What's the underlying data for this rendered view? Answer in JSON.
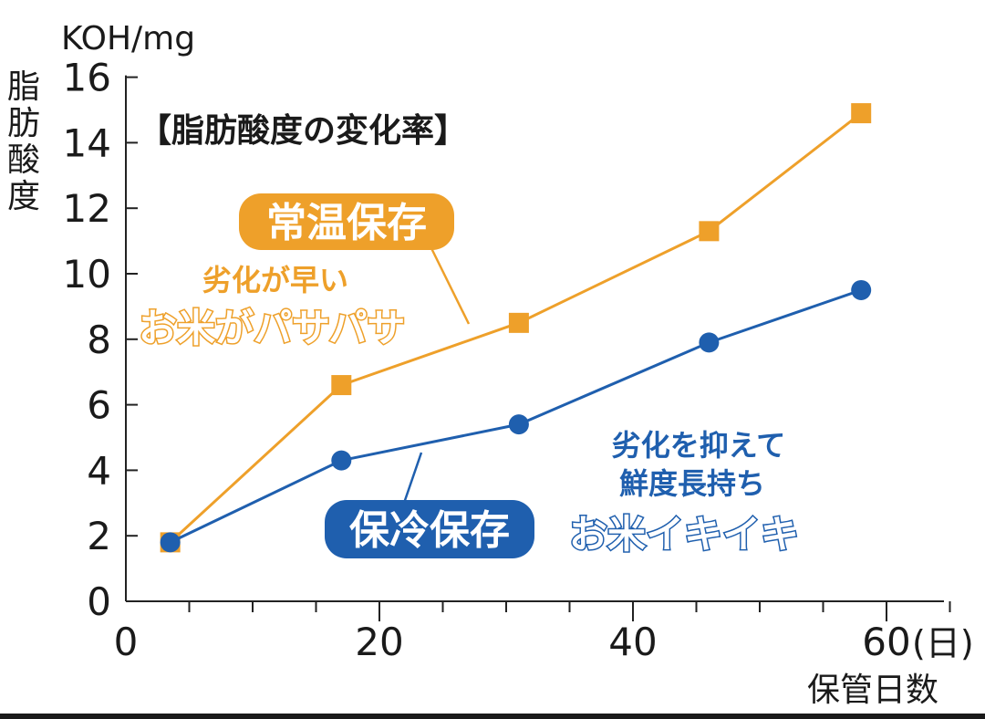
{
  "chart_data": {
    "type": "line",
    "title": "【脂肪酸度の変化率】",
    "unit_label": "KOH/mg",
    "ylabel": "脂肪酸度",
    "xlabel": "保管日数",
    "x_unit": "(日)",
    "xlim": [
      0,
      65
    ],
    "ylim": [
      0,
      16
    ],
    "x_ticks": [
      0,
      20,
      40,
      60
    ],
    "y_ticks": [
      0,
      2,
      4,
      6,
      8,
      10,
      12,
      14,
      16
    ],
    "grid": false,
    "series": [
      {
        "name": "常温保存",
        "color": "#eea02a",
        "marker": "square",
        "x": [
          3.5,
          17,
          31,
          46,
          58
        ],
        "y": [
          1.8,
          6.6,
          8.5,
          11.3,
          14.9
        ],
        "annotation": [
          "劣化が早い",
          "お米がパサパサ"
        ]
      },
      {
        "name": "保冷保存",
        "color": "#1f5fae",
        "marker": "circle",
        "x": [
          3.5,
          17,
          31,
          46,
          58
        ],
        "y": [
          1.8,
          4.3,
          5.4,
          7.9,
          9.5
        ],
        "annotation": [
          "劣化を抑えて",
          "鮮度長持ち",
          "お米イキイキ"
        ]
      }
    ]
  }
}
